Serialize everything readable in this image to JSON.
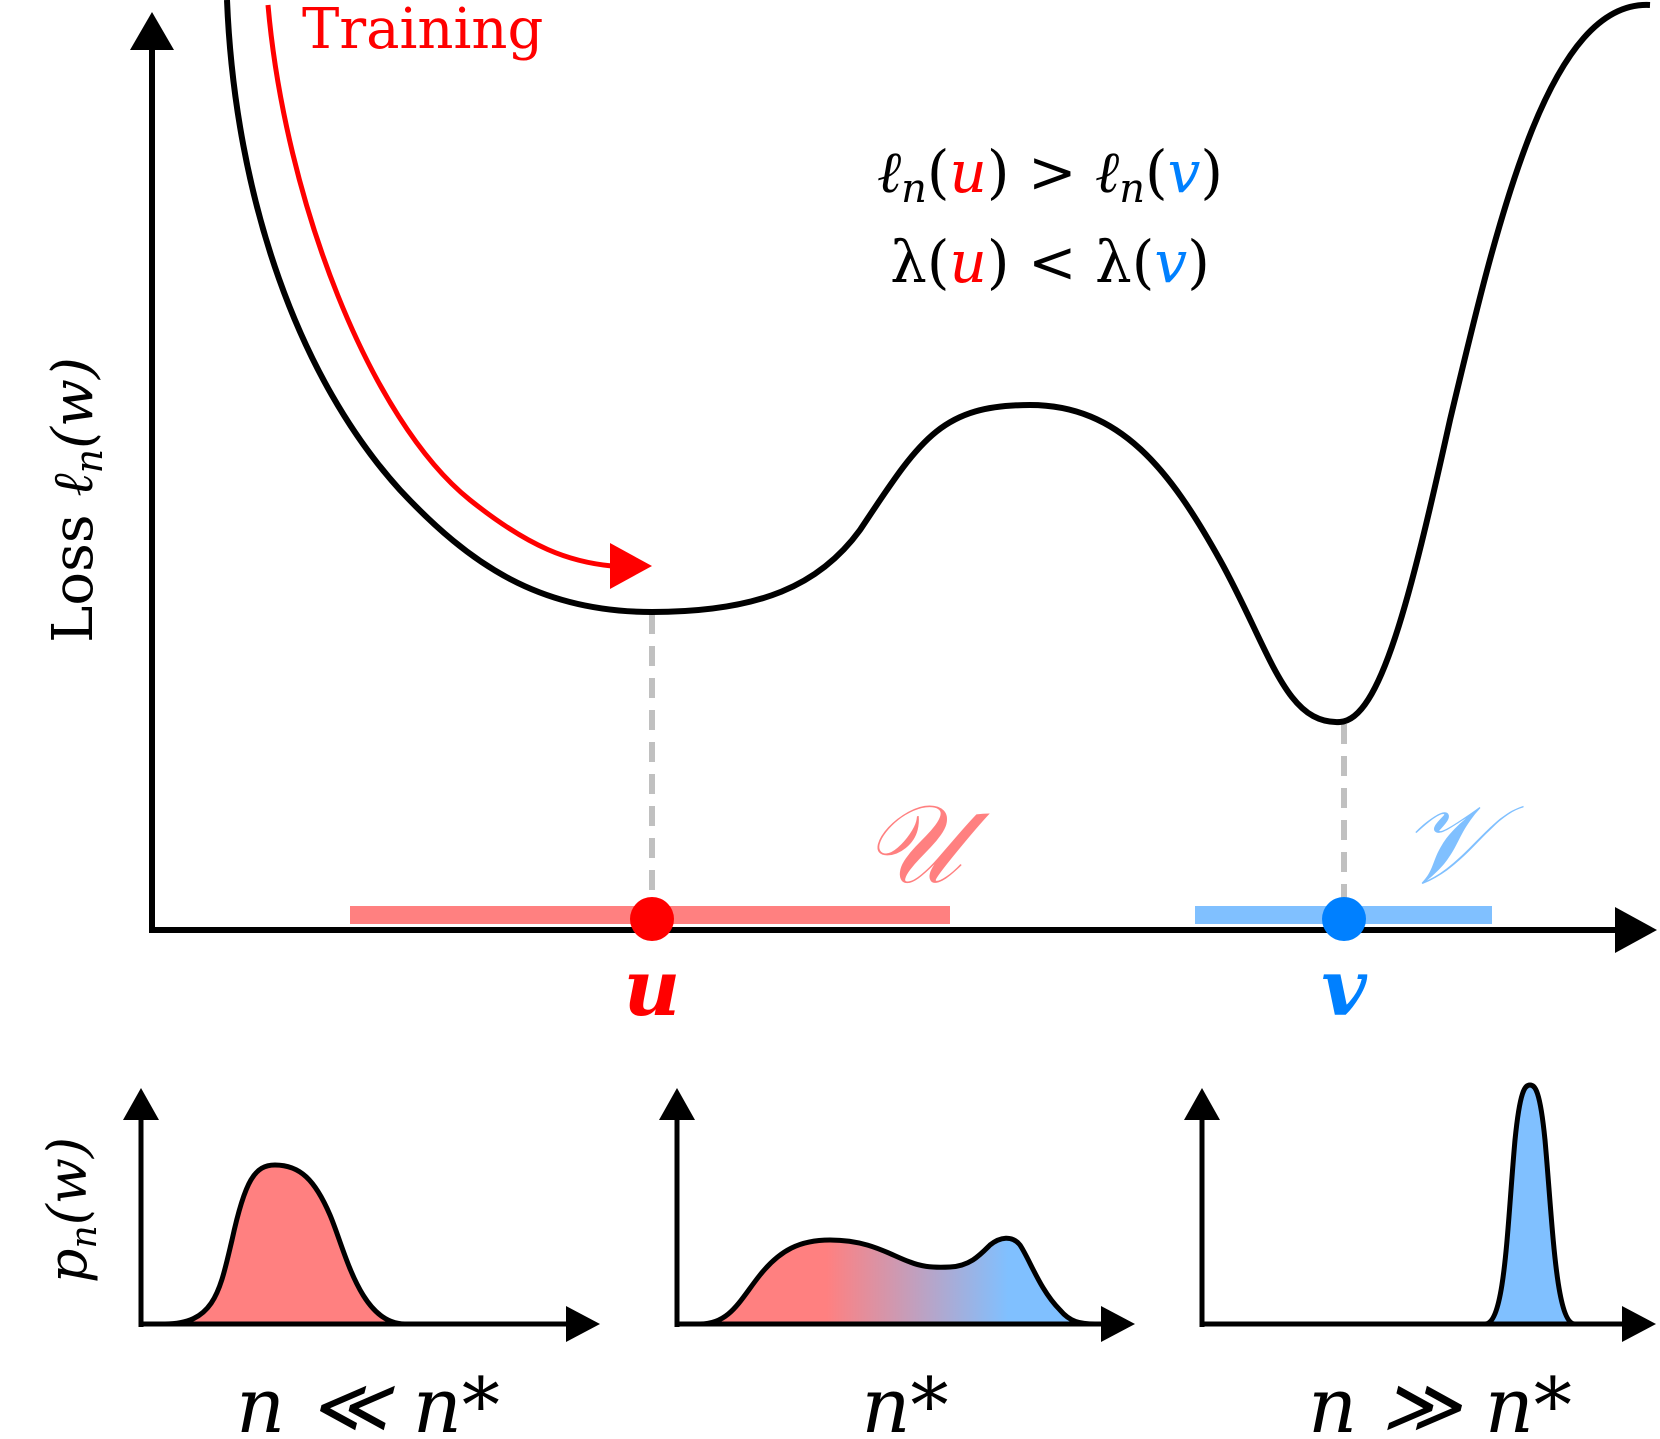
{
  "main": {
    "training_label": "Training",
    "ylabel_prefix": "Loss ",
    "ylabel_math": "ℓ",
    "ylabel_sub": "n",
    "ylabel_arg": "(w)",
    "ineq1": {
      "lhs_pre": "ℓ",
      "sub": "n",
      "lhs_open": "(",
      "u": "u",
      "lhs_close": ")",
      "op": " > ",
      "rhs_pre": "ℓ",
      "rhs_sub": "n",
      "rhs_open": "(",
      "v": "v",
      "rhs_close": ")"
    },
    "ineq2": {
      "lhs_pre": "λ(",
      "u": "u",
      "mid": ") < λ(",
      "v": "v",
      "rhs_close": ")"
    },
    "set_u_label": "𝒰",
    "set_v_label": "𝒱",
    "point_u_label": "u",
    "point_v_label": "v"
  },
  "panels": {
    "ylabel_math": "p",
    "ylabel_sub": "n",
    "ylabel_arg": "(w)",
    "labels": [
      "n ≪ n*",
      "n*",
      "n ≫ n*"
    ]
  },
  "colors": {
    "red": "#ff0000",
    "red_light": "#ff8080",
    "blue": "#0080ff",
    "blue_light": "#80c0ff",
    "gray": "#c0c0c0",
    "black": "#000000"
  }
}
